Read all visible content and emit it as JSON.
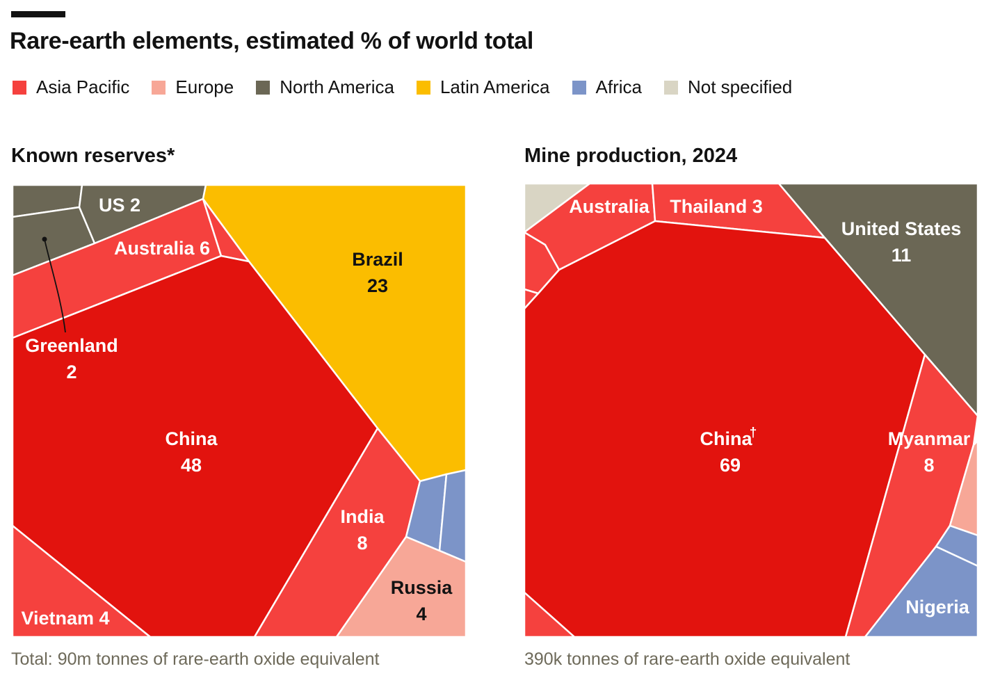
{
  "title": "Rare-earth elements, estimated % of world total",
  "legend": [
    {
      "label": "Asia Pacific",
      "color": "#f5413e"
    },
    {
      "label": "Europe",
      "color": "#f7a797"
    },
    {
      "label": "North America",
      "color": "#6b6755"
    },
    {
      "label": "Latin America",
      "color": "#fbbd00"
    },
    {
      "label": "Africa",
      "color": "#7c94c8"
    },
    {
      "label": "Not specified",
      "color": "#d9d5c4"
    }
  ],
  "panels": {
    "left": {
      "title": "Known reserves*",
      "note": "Total: 90m tonnes of rare-earth oxide equivalent"
    },
    "right": {
      "title": "Mine production, 2024",
      "note": "390k tonnes of rare-earth oxide equivalent"
    }
  },
  "chart_data": [
    {
      "type": "voronoi-treemap",
      "title": "Known reserves*",
      "unit": "% of world total",
      "regions": [
        {
          "name": "China",
          "value": 48,
          "region": "Asia Pacific"
        },
        {
          "name": "Brazil",
          "value": 23,
          "region": "Latin America"
        },
        {
          "name": "India",
          "value": 8,
          "region": "Asia Pacific"
        },
        {
          "name": "Australia",
          "value": 6,
          "region": "Asia Pacific"
        },
        {
          "name": "Russia",
          "value": 4,
          "region": "Europe"
        },
        {
          "name": "Vietnam",
          "value": 4,
          "region": "Asia Pacific"
        },
        {
          "name": "US",
          "value": 2,
          "region": "North America"
        },
        {
          "name": "Greenland",
          "value": 2,
          "region": "North America"
        }
      ],
      "labels": {
        "china": [
          "China",
          "48"
        ],
        "brazil": [
          "Brazil",
          "23"
        ],
        "india": [
          "India",
          "8"
        ],
        "russia": [
          "Russia",
          "4"
        ],
        "australia": "Australia 6",
        "us": "US 2",
        "vietnam": "Vietnam 4",
        "greenland": [
          "Greenland",
          "2"
        ]
      }
    },
    {
      "type": "voronoi-treemap",
      "title": "Mine production, 2024",
      "unit": "% of world total",
      "regions": [
        {
          "name": "China",
          "value": 69,
          "region": "Asia Pacific"
        },
        {
          "name": "United States",
          "value": 11,
          "region": "North America"
        },
        {
          "name": "Myanmar",
          "value": 8,
          "region": "Asia Pacific"
        },
        {
          "name": "Thailand",
          "value": 3,
          "region": "Asia Pacific"
        },
        {
          "name": "Australia",
          "value": null,
          "region": "Asia Pacific"
        },
        {
          "name": "Nigeria",
          "value": null,
          "region": "Africa"
        }
      ],
      "labels": {
        "china": [
          "China",
          "69"
        ],
        "china_mark": "†",
        "us": [
          "United States",
          "11"
        ],
        "myanmar": [
          "Myanmar",
          "8"
        ],
        "thailand": "Thailand 3",
        "australia": "Australia",
        "nigeria": "Nigeria"
      }
    }
  ]
}
